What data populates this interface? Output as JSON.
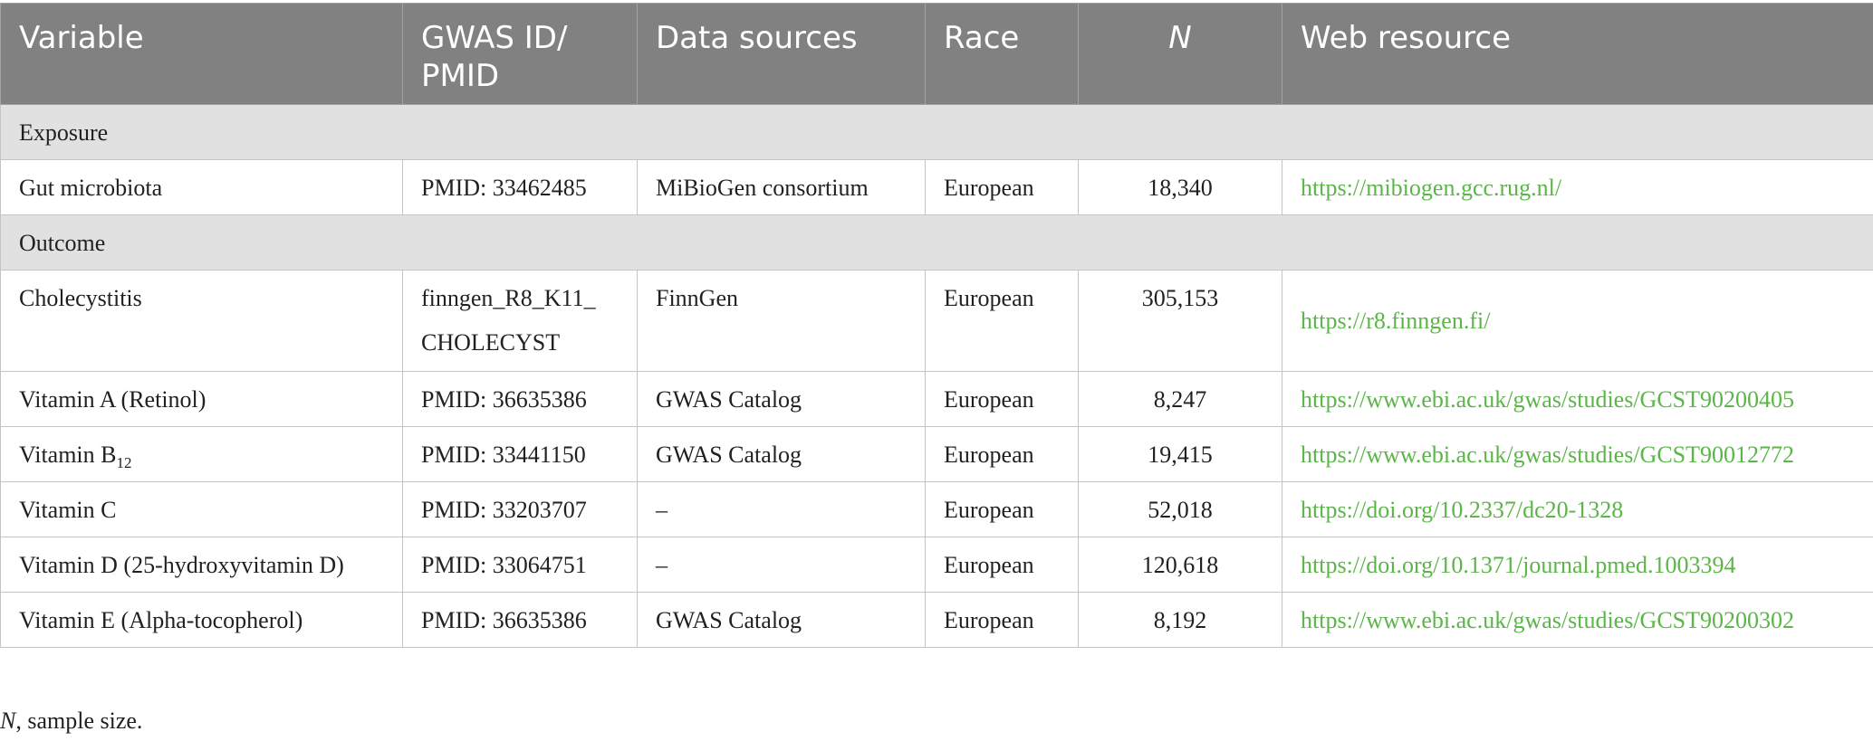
{
  "table": {
    "headers": {
      "variable": "Variable",
      "gwas_id": "GWAS ID/ PMID",
      "data_sources": "Data sources",
      "race": "Race",
      "n": "N",
      "web_resource": "Web resource"
    },
    "sections": {
      "exposure": "Exposure",
      "outcome": "Outcome"
    },
    "rows": [
      {
        "variable": "Gut microbiota",
        "gwas_id": "PMID: 33462485",
        "data_sources": "MiBioGen consortium",
        "race": "European",
        "n": "18,340",
        "web_resource": "https://mibiogen.gcc.rug.nl/"
      },
      {
        "variable": "Cholecystitis",
        "gwas_id": "finngen_R8_K11_ CHOLECYST",
        "data_sources": "FinnGen",
        "race": "European",
        "n": "305,153",
        "web_resource": "https://r8.finngen.fi/"
      },
      {
        "variable": "Vitamin A (Retinol)",
        "gwas_id": "PMID: 36635386",
        "data_sources": "GWAS Catalog",
        "race": "European",
        "n": "8,247",
        "web_resource": "https://www.ebi.ac.uk/gwas/studies/GCST90200405"
      },
      {
        "variable": "Vitamin B",
        "variable_subscript": "12",
        "gwas_id": "PMID: 33441150",
        "data_sources": "GWAS Catalog",
        "race": "European",
        "n": "19,415",
        "web_resource": "https://www.ebi.ac.uk/gwas/studies/GCST90012772"
      },
      {
        "variable": "Vitamin C",
        "gwas_id": "PMID: 33203707",
        "data_sources": "–",
        "race": "European",
        "n": "52,018",
        "web_resource": "https://doi.org/10.2337/dc20-1328"
      },
      {
        "variable": "Vitamin D (25-hydroxyvitamin D)",
        "gwas_id": "PMID: 33064751",
        "data_sources": "–",
        "race": "European",
        "n": "120,618",
        "web_resource": "https://doi.org/10.1371/journal.pmed.1003394"
      },
      {
        "variable": "Vitamin E (Alpha-tocopherol)",
        "gwas_id": "PMID: 36635386",
        "data_sources": "GWAS Catalog",
        "race": "European",
        "n": "8,192",
        "web_resource": "https://www.ebi.ac.uk/gwas/studies/GCST90200302"
      }
    ],
    "cholecystitis_gwas_id_lines": [
      "finngen_R8_K11_",
      "CHOLECYST"
    ]
  },
  "footnote": {
    "symbol": "N",
    "text": ", sample size."
  },
  "colors": {
    "header_bg": "#818181",
    "section_bg": "#e1e1e1",
    "link": "#5bb548",
    "border": "#c4c4c4"
  }
}
